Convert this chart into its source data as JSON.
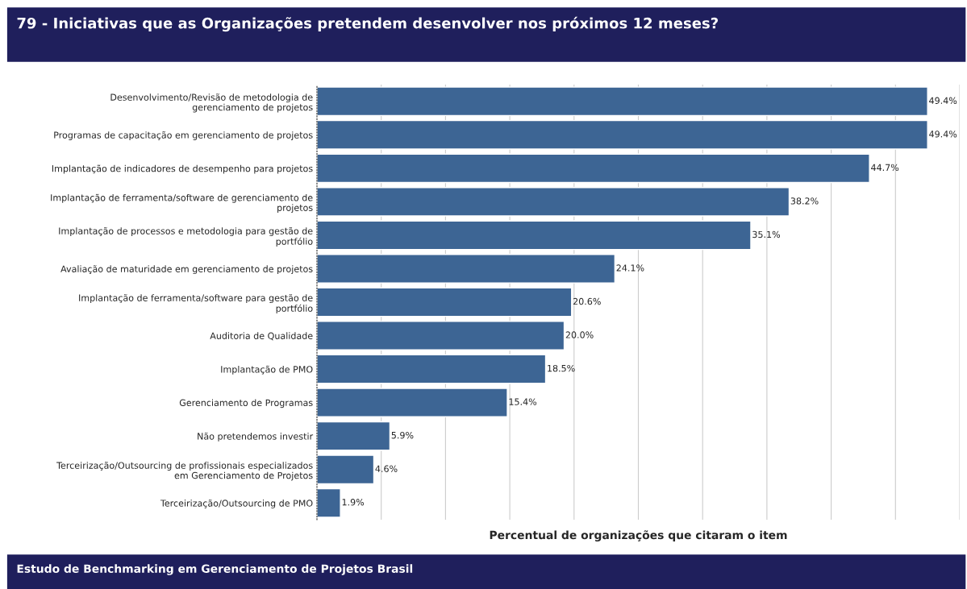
{
  "chart_data": {
    "type": "bar",
    "orientation": "horizontal",
    "title": "79 - Iniciativas que as Organizações pretendem desenvolver nos próximos 12 meses?",
    "xlabel": "Percentual de organizações que citaram o item",
    "categories": [
      "Desenvolvimento/Revisão de metodologia de\ngerenciamento de projetos",
      "Programas de capacitação em gerenciamento de projetos",
      "Implantação de indicadores de desempenho para projetos",
      "Implantação de ferramenta/software de gerenciamento de\nprojetos",
      "Implantação de processos e metodologia para gestão de\nportfólio",
      "Avaliação de maturidade em gerenciamento de projetos",
      "Implantação de ferramenta/software para gestão de\nportfólio",
      "Auditoria de Qualidade",
      "Implantação de PMO",
      "Gerenciamento de Programas",
      "Não pretendemos investir",
      "Terceirização/Outsourcing de profissionais especializados\nem Gerenciamento de Projetos",
      "Terceirização/Outsourcing de PMO"
    ],
    "values": [
      49.4,
      49.4,
      44.7,
      38.2,
      35.1,
      24.1,
      20.6,
      20.0,
      18.5,
      15.4,
      5.9,
      4.6,
      1.9
    ],
    "value_labels": [
      "49.4%",
      "49.4%",
      "44.7%",
      "38.2%",
      "35.1%",
      "24.1%",
      "20.6%",
      "20.0%",
      "18.5%",
      "15.4%",
      "5.9%",
      "4.6%",
      "1.9%"
    ],
    "color": "#3d6594",
    "xlim": [
      0,
      52
    ],
    "xticks": [
      {
        "value": 5.2,
        "label": null
      },
      {
        "value": 10.4,
        "label": null
      },
      {
        "value": 15.6,
        "label": null
      },
      {
        "value": 20.8,
        "label": null
      },
      {
        "value": 26,
        "label": null
      },
      {
        "value": 31.2,
        "label": null
      },
      {
        "value": 36.4,
        "label": null
      },
      {
        "value": 41.6,
        "label": null
      },
      {
        "value": 46.8,
        "label": null
      },
      {
        "value": 52,
        "label": null
      }
    ],
    "grid": "x",
    "legend": false,
    "annotations": [
      "Estudo de Benchmarking em Gerenciamento de Projetos Brasil"
    ]
  }
}
